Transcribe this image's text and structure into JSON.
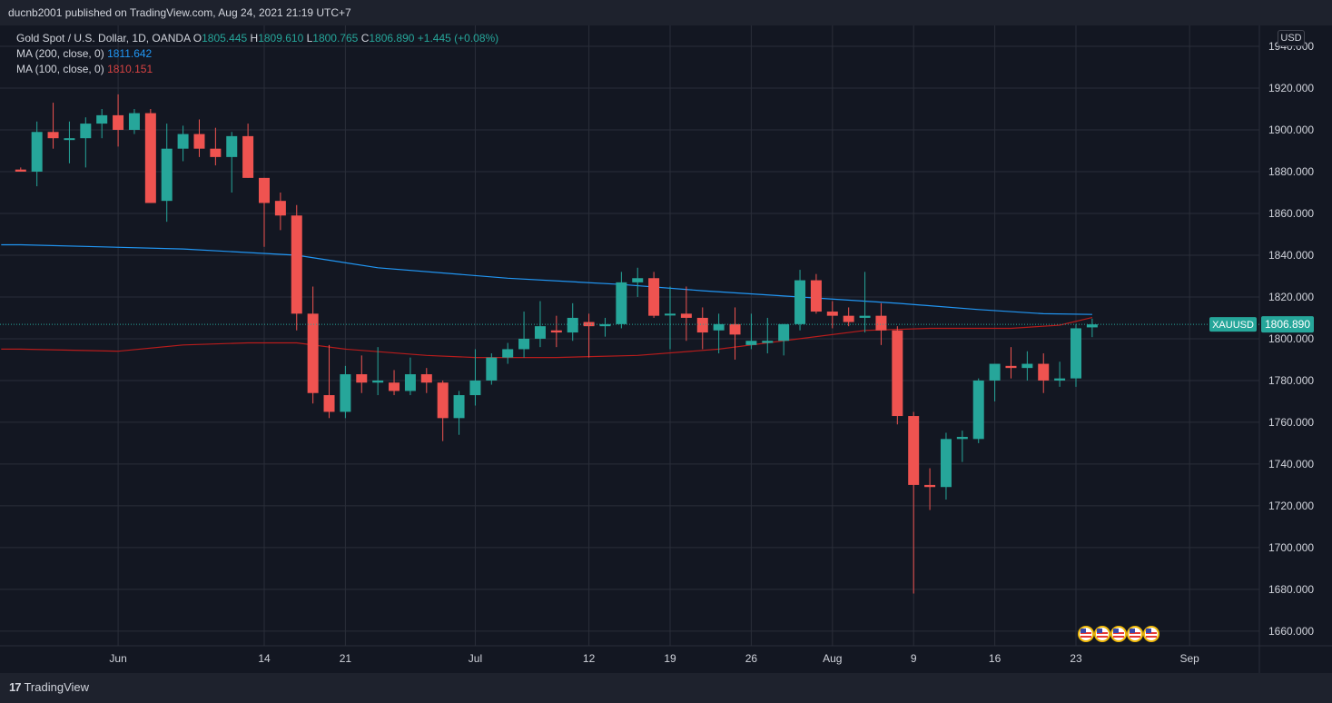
{
  "header": {
    "published": "ducnb2001 published on TradingView.com, Aug 24, 2021 21:19 UTC+7"
  },
  "legend": {
    "symbol": "Gold Spot / U.S. Dollar, 1D, OANDA",
    "open_label": "O",
    "open": "1805.445",
    "high_label": "H",
    "high": "1809.610",
    "low_label": "L",
    "low": "1800.765",
    "close_label": "C",
    "close": "1806.890",
    "change": "+1.445 (+0.08%)",
    "ma200_label": "MA (200, close, 0)",
    "ma200_value": "1811.642",
    "ma100_label": "MA (100, close, 0)",
    "ma100_value": "1810.151"
  },
  "currency": "USD",
  "footer": {
    "brand": "TradingView",
    "logo_text": "17"
  },
  "chart_data": {
    "type": "candlestick",
    "symbol": "XAUUSD",
    "last_price": 1806.89,
    "last_price_label": "1806.890",
    "ylim": [
      1653,
      1950
    ],
    "y_ticks": [
      1660,
      1680,
      1700,
      1720,
      1740,
      1760,
      1780,
      1800,
      1820,
      1840,
      1860,
      1880,
      1900,
      1920,
      1940
    ],
    "x_ticks": [
      {
        "label": "Jun",
        "index": 6
      },
      {
        "label": "14",
        "index": 15
      },
      {
        "label": "21",
        "index": 20
      },
      {
        "label": "Jul",
        "index": 28
      },
      {
        "label": "12",
        "index": 35
      },
      {
        "label": "19",
        "index": 40
      },
      {
        "label": "26",
        "index": 45
      },
      {
        "label": "Aug",
        "index": 50
      },
      {
        "label": "9",
        "index": 55
      },
      {
        "label": "16",
        "index": 60
      },
      {
        "label": "23",
        "index": 65
      },
      {
        "label": "Sep",
        "index": 72
      }
    ],
    "colors": {
      "up": "#26a69a",
      "down": "#ef5350",
      "ma200": "#2196f3",
      "ma100": "#b71c1c",
      "grid": "#2a2e39"
    },
    "candles": [
      [
        1881,
        1882,
        1880,
        1880
      ],
      [
        1880,
        1904,
        1873,
        1899
      ],
      [
        1899,
        1913,
        1891,
        1896
      ],
      [
        1896,
        1904,
        1884,
        1896
      ],
      [
        1896,
        1906,
        1882,
        1903
      ],
      [
        1903,
        1910,
        1896,
        1907
      ],
      [
        1907,
        1917,
        1892,
        1900
      ],
      [
        1900,
        1910,
        1898,
        1908
      ],
      [
        1908,
        1910,
        1865,
        1865
      ],
      [
        1866,
        1903,
        1856,
        1891
      ],
      [
        1891,
        1902,
        1885,
        1898
      ],
      [
        1898,
        1905,
        1887,
        1891
      ],
      [
        1891,
        1901,
        1883,
        1887
      ],
      [
        1887,
        1899,
        1870,
        1897
      ],
      [
        1897,
        1903,
        1877,
        1877
      ],
      [
        1877,
        1877,
        1844,
        1865
      ],
      [
        1866,
        1870,
        1852,
        1859
      ],
      [
        1859,
        1864,
        1804,
        1812
      ],
      [
        1812,
        1825,
        1769,
        1774
      ],
      [
        1773,
        1797,
        1762,
        1765
      ],
      [
        1765,
        1787,
        1762,
        1783
      ],
      [
        1783,
        1792,
        1774,
        1779
      ],
      [
        1779,
        1796,
        1773,
        1780
      ],
      [
        1779,
        1785,
        1773,
        1775
      ],
      [
        1775,
        1791,
        1773,
        1783
      ],
      [
        1783,
        1786,
        1774,
        1779
      ],
      [
        1779,
        1780,
        1751,
        1762
      ],
      [
        1762,
        1775,
        1754,
        1773
      ],
      [
        1773,
        1795,
        1768,
        1780
      ],
      [
        1780,
        1793,
        1778,
        1791
      ],
      [
        1791,
        1798,
        1788,
        1795
      ],
      [
        1795,
        1813,
        1791,
        1800
      ],
      [
        1800,
        1818,
        1796,
        1806
      ],
      [
        1804,
        1811,
        1796,
        1803
      ],
      [
        1803,
        1817,
        1799,
        1810
      ],
      [
        1808,
        1812,
        1791,
        1806
      ],
      [
        1806,
        1810,
        1801,
        1807
      ],
      [
        1807,
        1832,
        1805,
        1827
      ],
      [
        1827,
        1834,
        1820,
        1829
      ],
      [
        1829,
        1832,
        1810,
        1811
      ],
      [
        1812,
        1825,
        1795,
        1812
      ],
      [
        1812,
        1825,
        1799,
        1810
      ],
      [
        1810,
        1815,
        1795,
        1803
      ],
      [
        1804,
        1812,
        1793,
        1807
      ],
      [
        1807,
        1815,
        1790,
        1802
      ],
      [
        1797,
        1812,
        1795,
        1799
      ],
      [
        1798,
        1810,
        1793,
        1799
      ],
      [
        1799,
        1807,
        1792,
        1807
      ],
      [
        1807,
        1833,
        1804,
        1828
      ],
      [
        1828,
        1831,
        1812,
        1813
      ],
      [
        1813,
        1818,
        1805,
        1811
      ],
      [
        1811,
        1815,
        1806,
        1808
      ],
      [
        1810,
        1832,
        1803,
        1811
      ],
      [
        1811,
        1817,
        1797,
        1804
      ],
      [
        1804,
        1806,
        1759,
        1763
      ],
      [
        1763,
        1765,
        1678,
        1730
      ],
      [
        1730,
        1738,
        1718,
        1729
      ],
      [
        1729,
        1755,
        1723,
        1752
      ],
      [
        1752,
        1756,
        1741,
        1753
      ],
      [
        1752,
        1781,
        1750,
        1780
      ],
      [
        1780,
        1788,
        1770,
        1788
      ],
      [
        1787,
        1796,
        1781,
        1786
      ],
      [
        1786,
        1794,
        1780,
        1788
      ],
      [
        1788,
        1793,
        1774,
        1780
      ],
      [
        1780,
        1789,
        1777,
        1781
      ],
      [
        1781,
        1807,
        1777,
        1805
      ],
      [
        1805.445,
        1809.61,
        1800.765,
        1806.89
      ]
    ],
    "ma200": [
      [
        0,
        1845
      ],
      [
        10,
        1843
      ],
      [
        17,
        1840
      ],
      [
        22,
        1834
      ],
      [
        30,
        1829
      ],
      [
        37,
        1826
      ],
      [
        42,
        1823
      ],
      [
        48,
        1820
      ],
      [
        54,
        1817
      ],
      [
        59,
        1814
      ],
      [
        63,
        1812
      ],
      [
        66,
        1811.642
      ]
    ],
    "ma100": [
      [
        0,
        1795
      ],
      [
        6,
        1794
      ],
      [
        10,
        1797
      ],
      [
        14,
        1798
      ],
      [
        17,
        1798
      ],
      [
        20,
        1795
      ],
      [
        25,
        1792
      ],
      [
        28,
        1791
      ],
      [
        33,
        1791
      ],
      [
        38,
        1792
      ],
      [
        43,
        1795
      ],
      [
        48,
        1800
      ],
      [
        52,
        1804
      ],
      [
        56,
        1805
      ],
      [
        61,
        1805
      ],
      [
        64,
        1806.5
      ],
      [
        66,
        1810.151
      ]
    ],
    "events": [
      "us-flag-icon",
      "us-flag-icon",
      "us-flag-icon",
      "us-flag-icon",
      "us-flag-icon"
    ]
  }
}
